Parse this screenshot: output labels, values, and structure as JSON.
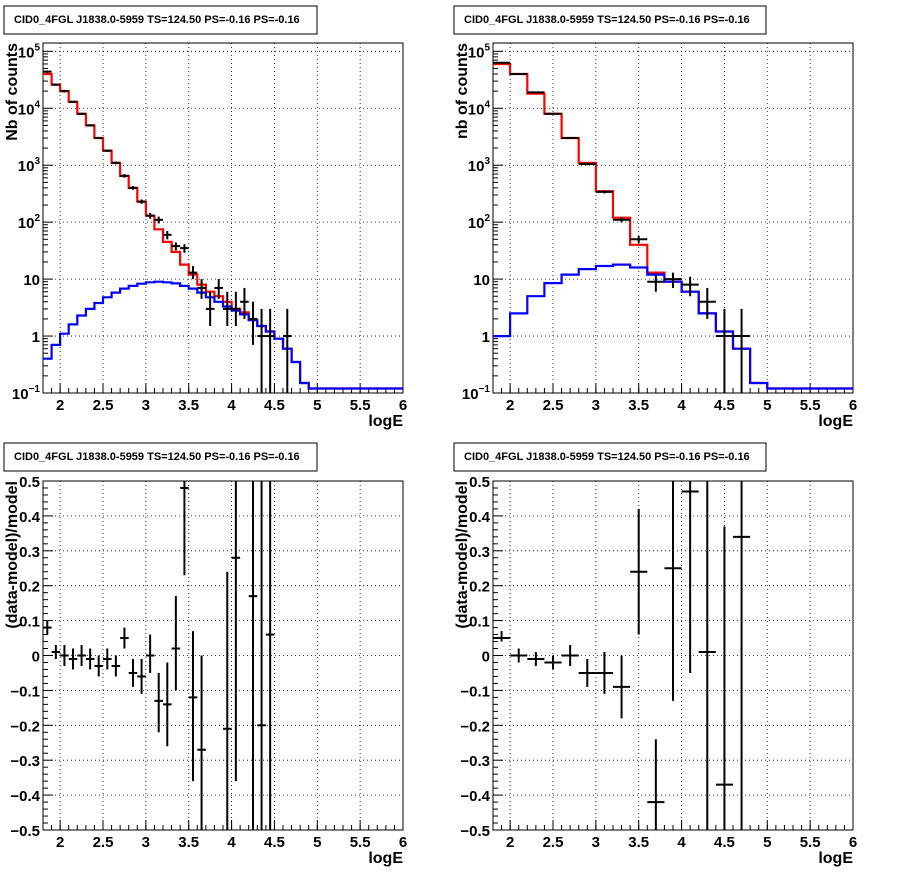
{
  "chart_data": [
    {
      "type": "line",
      "title": "CID0_4FGL J1838.0-5959 TS=124.50 PS=-0.16 PS=-0.16",
      "xlabel": "logE",
      "ylabel": "Nb of counts",
      "xlim": [
        1.8,
        6.0
      ],
      "ylim": [
        0.1,
        140000
      ],
      "yscale": "log",
      "grid": true,
      "xticks": [
        "2",
        "2.5",
        "3",
        "3.5",
        "4",
        "4.5",
        "5",
        "5.5",
        "6"
      ],
      "yticks": [
        {
          "v": 0.1,
          "base": "10",
          "exp": "−1"
        },
        {
          "v": 1,
          "label": "1"
        },
        {
          "v": 10,
          "label": "10"
        },
        {
          "v": 100,
          "base": "10",
          "exp": "2"
        },
        {
          "v": 1000,
          "base": "10",
          "exp": "3"
        },
        {
          "v": 10000,
          "base": "10",
          "exp": "4"
        },
        {
          "v": 100000,
          "base": "10",
          "exp": "5"
        }
      ],
      "bin_edges": [
        1.8,
        1.9,
        2.0,
        2.1,
        2.2,
        2.3,
        2.4,
        2.5,
        2.6,
        2.7,
        2.8,
        2.9,
        3.0,
        3.1,
        3.2,
        3.3,
        3.4,
        3.5,
        3.6,
        3.7,
        3.8,
        3.9,
        4.0,
        4.1,
        4.2,
        4.3,
        4.4,
        4.5,
        4.6,
        4.7,
        4.8,
        4.9,
        5.0,
        5.1,
        5.2,
        5.3,
        5.4,
        5.5,
        5.6,
        5.7,
        5.8,
        5.9,
        6.0
      ],
      "series": [
        {
          "color": "#ff0000",
          "values": [
            40000,
            26000,
            20000,
            13000,
            8000,
            5000,
            3000,
            1800,
            1100,
            650,
            400,
            230,
            130,
            75,
            45,
            30,
            18,
            12,
            8,
            6,
            5,
            4,
            3,
            2.6,
            1.9,
            1.5,
            1.2,
            0.9,
            0.6,
            0.35,
            0.15,
            0.12,
            0.12,
            0.12,
            0.12,
            0.12,
            0.12,
            0.12,
            0.12,
            0.12,
            0.12,
            0.12
          ]
        },
        {
          "color": "#0000ff",
          "values": [
            0.4,
            0.7,
            1.1,
            1.6,
            2.3,
            3.0,
            3.8,
            4.8,
            5.8,
            6.8,
            7.6,
            8.3,
            8.8,
            9.0,
            8.8,
            8.4,
            7.6,
            6.8,
            5.8,
            4.8,
            4.0,
            3.3,
            2.8,
            2.4,
            1.9,
            1.5,
            1.2,
            0.9,
            0.6,
            0.35,
            0.15,
            0.12,
            0.12,
            0.12,
            0.12,
            0.12,
            0.12,
            0.12,
            0.12,
            0.12,
            0.12,
            0.12
          ]
        }
      ],
      "points": [
        {
          "x": 1.85,
          "y": 44000,
          "ylo": 42000,
          "yhi": 46000
        },
        {
          "x": 1.95,
          "y": 26000,
          "ylo": 25000,
          "yhi": 27000
        },
        {
          "x": 2.05,
          "y": 20000,
          "ylo": 19000,
          "yhi": 21000
        },
        {
          "x": 2.15,
          "y": 13000,
          "ylo": 12600,
          "yhi": 13400
        },
        {
          "x": 2.25,
          "y": 8000,
          "ylo": 7700,
          "yhi": 8300
        },
        {
          "x": 2.35,
          "y": 5000,
          "ylo": 4800,
          "yhi": 5200
        },
        {
          "x": 2.45,
          "y": 3000,
          "ylo": 2880,
          "yhi": 3120
        },
        {
          "x": 2.55,
          "y": 1800,
          "ylo": 1720,
          "yhi": 1880
        },
        {
          "x": 2.65,
          "y": 1100,
          "ylo": 1040,
          "yhi": 1160
        },
        {
          "x": 2.75,
          "y": 650,
          "ylo": 605,
          "yhi": 695
        },
        {
          "x": 2.85,
          "y": 400,
          "ylo": 370,
          "yhi": 430
        },
        {
          "x": 2.95,
          "y": 230,
          "ylo": 210,
          "yhi": 250
        },
        {
          "x": 3.05,
          "y": 130,
          "ylo": 115,
          "yhi": 145
        },
        {
          "x": 3.15,
          "y": 110,
          "ylo": 95,
          "yhi": 125
        },
        {
          "x": 3.25,
          "y": 60,
          "ylo": 50,
          "yhi": 70
        },
        {
          "x": 3.35,
          "y": 38,
          "ylo": 32,
          "yhi": 44
        },
        {
          "x": 3.45,
          "y": 35,
          "ylo": 29,
          "yhi": 41
        },
        {
          "x": 3.55,
          "y": 13,
          "ylo": 10,
          "yhi": 17
        },
        {
          "x": 3.65,
          "y": 7,
          "ylo": 4.5,
          "yhi": 10
        },
        {
          "x": 3.75,
          "y": 3,
          "ylo": 1.5,
          "yhi": 6
        },
        {
          "x": 3.85,
          "y": 7,
          "ylo": 4.5,
          "yhi": 10
        },
        {
          "x": 3.95,
          "y": 3,
          "ylo": 1.5,
          "yhi": 6
        },
        {
          "x": 4.05,
          "y": 3,
          "ylo": 1.5,
          "yhi": 6
        },
        {
          "x": 4.15,
          "y": 4,
          "ylo": 2,
          "yhi": 7
        },
        {
          "x": 4.25,
          "y": 2,
          "ylo": 0.7,
          "yhi": 4
        },
        {
          "x": 4.35,
          "y": 1,
          "ylo": 0.1,
          "yhi": 3
        },
        {
          "x": 4.45,
          "y": 1,
          "ylo": 0.1,
          "yhi": 3
        },
        {
          "x": 4.65,
          "y": 1,
          "ylo": 0.1,
          "yhi": 3
        }
      ]
    },
    {
      "type": "line",
      "title": "CID0_4FGL J1838.0-5959 TS=124.50 PS=-0.16 PS=-0.16",
      "xlabel": "logE",
      "ylabel": "nb of counts",
      "xlim": [
        1.8,
        6.0
      ],
      "ylim": [
        0.1,
        140000
      ],
      "yscale": "log",
      "grid": true,
      "xticks": [
        "2",
        "2.5",
        "3",
        "3.5",
        "4",
        "4.5",
        "5",
        "5.5",
        "6"
      ],
      "yticks": [
        {
          "v": 0.1,
          "base": "10",
          "exp": "−1"
        },
        {
          "v": 1,
          "label": "1"
        },
        {
          "v": 10,
          "label": "10"
        },
        {
          "v": 100,
          "base": "10",
          "exp": "2"
        },
        {
          "v": 1000,
          "base": "10",
          "exp": "3"
        },
        {
          "v": 10000,
          "base": "10",
          "exp": "4"
        },
        {
          "v": 100000,
          "base": "10",
          "exp": "5"
        }
      ],
      "bin_edges": [
        1.8,
        2.0,
        2.2,
        2.4,
        2.6,
        2.8,
        3.0,
        3.2,
        3.4,
        3.6,
        3.8,
        4.0,
        4.2,
        4.4,
        4.6,
        4.8,
        5.0,
        5.2,
        5.4,
        5.6,
        5.8,
        6.0
      ],
      "series": [
        {
          "color": "#ff0000",
          "values": [
            60000,
            40000,
            18000,
            8000,
            3000,
            1100,
            350,
            120,
            40,
            13,
            9,
            6,
            2.5,
            1.2,
            0.6,
            0.15,
            0.12,
            0.12,
            0.12,
            0.12,
            0.12
          ]
        },
        {
          "color": "#0000ff",
          "values": [
            1.0,
            2.5,
            5.0,
            8.5,
            12,
            15,
            17,
            18,
            16,
            12,
            9,
            6,
            2.5,
            1.2,
            0.6,
            0.15,
            0.12,
            0.12,
            0.12,
            0.12,
            0.12
          ]
        }
      ],
      "points": [
        {
          "x": 1.9,
          "y": 63000,
          "ylo": 62000,
          "yhi": 64000
        },
        {
          "x": 2.1,
          "y": 40000,
          "ylo": 39200,
          "yhi": 40800
        },
        {
          "x": 2.3,
          "y": 19000,
          "ylo": 18600,
          "yhi": 19400
        },
        {
          "x": 2.5,
          "y": 8000,
          "ylo": 7800,
          "yhi": 8200
        },
        {
          "x": 2.7,
          "y": 3000,
          "ylo": 2900,
          "yhi": 3100
        },
        {
          "x": 2.9,
          "y": 1050,
          "ylo": 1000,
          "yhi": 1100
        },
        {
          "x": 3.1,
          "y": 340,
          "ylo": 320,
          "yhi": 360
        },
        {
          "x": 3.3,
          "y": 110,
          "ylo": 99,
          "yhi": 121
        },
        {
          "x": 3.5,
          "y": 50,
          "ylo": 43,
          "yhi": 57
        },
        {
          "x": 3.7,
          "y": 9,
          "ylo": 6,
          "yhi": 12
        },
        {
          "x": 3.9,
          "y": 10,
          "ylo": 7,
          "yhi": 13
        },
        {
          "x": 4.1,
          "y": 8,
          "ylo": 5,
          "yhi": 11
        },
        {
          "x": 4.3,
          "y": 4,
          "ylo": 2,
          "yhi": 7
        },
        {
          "x": 4.5,
          "y": 1,
          "ylo": 0.1,
          "yhi": 3
        },
        {
          "x": 4.7,
          "y": 1,
          "ylo": 0.1,
          "yhi": 3
        }
      ]
    },
    {
      "type": "scatter",
      "title": "CID0_4FGL J1838.0-5959 TS=124.50 PS=-0.16 PS=-0.16",
      "xlabel": "logE",
      "ylabel": "(data-model)/model",
      "xlim": [
        1.8,
        6.0
      ],
      "ylim": [
        -0.5,
        0.5
      ],
      "yscale": "linear",
      "grid": true,
      "xticks": [
        "2",
        "2.5",
        "3",
        "3.5",
        "4",
        "4.5",
        "5",
        "5.5",
        "6"
      ],
      "yticks": [
        "−0.5",
        "−0.4",
        "−0.3",
        "−0.2",
        "−0.1",
        "0",
        "0.1",
        "0.2",
        "0.3",
        "0.4",
        "0.5"
      ],
      "xerr": 0.05,
      "points": [
        {
          "x": 1.85,
          "y": 0.08,
          "ylo": 0.06,
          "yhi": 0.1
        },
        {
          "x": 1.95,
          "y": 0.01,
          "ylo": -0.01,
          "yhi": 0.03
        },
        {
          "x": 2.05,
          "y": 0.0,
          "ylo": -0.03,
          "yhi": 0.03
        },
        {
          "x": 2.15,
          "y": -0.01,
          "ylo": -0.04,
          "yhi": 0.02
        },
        {
          "x": 2.25,
          "y": 0.0,
          "ylo": -0.03,
          "yhi": 0.03
        },
        {
          "x": 2.35,
          "y": -0.01,
          "ylo": -0.04,
          "yhi": 0.02
        },
        {
          "x": 2.45,
          "y": -0.03,
          "ylo": -0.06,
          "yhi": 0.0
        },
        {
          "x": 2.55,
          "y": -0.01,
          "ylo": -0.04,
          "yhi": 0.02
        },
        {
          "x": 2.65,
          "y": -0.03,
          "ylo": -0.06,
          "yhi": 0.0
        },
        {
          "x": 2.75,
          "y": 0.05,
          "ylo": 0.02,
          "yhi": 0.08
        },
        {
          "x": 2.85,
          "y": -0.05,
          "ylo": -0.09,
          "yhi": -0.01
        },
        {
          "x": 2.95,
          "y": -0.06,
          "ylo": -0.11,
          "yhi": -0.01
        },
        {
          "x": 3.05,
          "y": 0.0,
          "ylo": -0.05,
          "yhi": 0.06
        },
        {
          "x": 3.15,
          "y": -0.13,
          "ylo": -0.22,
          "yhi": -0.05
        },
        {
          "x": 3.25,
          "y": -0.14,
          "ylo": -0.26,
          "yhi": -0.02
        },
        {
          "x": 3.35,
          "y": 0.02,
          "ylo": -0.1,
          "yhi": 0.17
        },
        {
          "x": 3.45,
          "y": 0.48,
          "ylo": 0.23,
          "yhi": 0.5
        },
        {
          "x": 3.55,
          "y": -0.12,
          "ylo": -0.36,
          "yhi": 0.07
        },
        {
          "x": 3.65,
          "y": -0.27,
          "ylo": -0.5,
          "yhi": 0.0
        },
        {
          "x": 3.95,
          "y": -0.21,
          "ylo": -0.5,
          "yhi": 0.24
        },
        {
          "x": 4.05,
          "y": 0.28,
          "ylo": -0.36,
          "yhi": 0.5
        },
        {
          "x": 4.25,
          "y": 0.17,
          "ylo": -0.5,
          "yhi": 0.5
        },
        {
          "x": 4.35,
          "y": -0.2,
          "ylo": -0.5,
          "yhi": 0.5
        },
        {
          "x": 4.45,
          "y": 0.06,
          "ylo": -0.5,
          "yhi": 0.5
        }
      ]
    },
    {
      "type": "scatter",
      "title": "CID0_4FGL J1838.0-5959 TS=124.50 PS=-0.16 PS=-0.16",
      "xlabel": "logE",
      "ylabel": "(data-model)/model",
      "xlim": [
        1.8,
        6.0
      ],
      "ylim": [
        -0.5,
        0.5
      ],
      "yscale": "linear",
      "grid": true,
      "xticks": [
        "2",
        "2.5",
        "3",
        "3.5",
        "4",
        "4.5",
        "5",
        "5.5",
        "6"
      ],
      "yticks": [
        "−0.5",
        "−0.4",
        "−0.3",
        "−0.2",
        "−0.1",
        "0",
        "0.1",
        "0.2",
        "0.3",
        "0.4",
        "0.5"
      ],
      "xerr": 0.1,
      "points": [
        {
          "x": 1.9,
          "y": 0.05,
          "ylo": 0.04,
          "yhi": 0.07
        },
        {
          "x": 2.1,
          "y": 0.0,
          "ylo": -0.02,
          "yhi": 0.02
        },
        {
          "x": 2.3,
          "y": -0.01,
          "ylo": -0.03,
          "yhi": 0.01
        },
        {
          "x": 2.5,
          "y": -0.02,
          "ylo": -0.04,
          "yhi": 0.0
        },
        {
          "x": 2.7,
          "y": 0.0,
          "ylo": -0.03,
          "yhi": 0.03
        },
        {
          "x": 2.9,
          "y": -0.05,
          "ylo": -0.09,
          "yhi": -0.01
        },
        {
          "x": 3.1,
          "y": -0.05,
          "ylo": -0.11,
          "yhi": 0.01
        },
        {
          "x": 3.3,
          "y": -0.09,
          "ylo": -0.18,
          "yhi": 0.0
        },
        {
          "x": 3.5,
          "y": 0.24,
          "ylo": 0.06,
          "yhi": 0.42
        },
        {
          "x": 3.7,
          "y": -0.42,
          "ylo": -0.5,
          "yhi": -0.24
        },
        {
          "x": 3.9,
          "y": 0.25,
          "ylo": -0.13,
          "yhi": 0.5
        },
        {
          "x": 4.1,
          "y": 0.47,
          "ylo": -0.05,
          "yhi": 0.5
        },
        {
          "x": 4.3,
          "y": 0.01,
          "ylo": -0.5,
          "yhi": 0.5
        },
        {
          "x": 4.5,
          "y": -0.37,
          "ylo": -0.5,
          "yhi": 0.37
        },
        {
          "x": 4.7,
          "y": 0.34,
          "ylo": -0.5,
          "yhi": 0.5
        }
      ]
    }
  ]
}
